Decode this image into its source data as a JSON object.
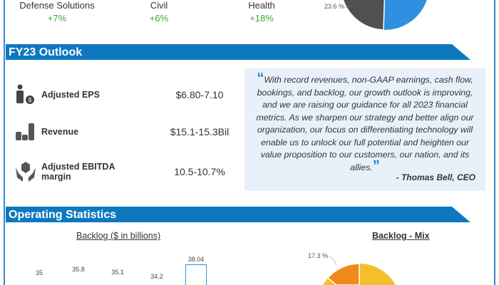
{
  "segments": [
    {
      "name": "Defense Solutions",
      "growth": "+7%"
    },
    {
      "name": "Civil",
      "growth": "+6%"
    },
    {
      "name": "Health",
      "growth": "+18%"
    }
  ],
  "top_pie": {
    "label": "23.6 %",
    "colors": [
      "#505050",
      "#2f8fe0"
    ]
  },
  "outlook": {
    "title": "FY23 Outlook",
    "metrics": [
      {
        "icon": "person-money-icon",
        "label": "Adjusted EPS",
        "value": "$6.80-7.10"
      },
      {
        "icon": "coin-stacks-icon",
        "label": "Revenue",
        "value": "$15.1-15.3Bil"
      },
      {
        "icon": "hands-box-icon",
        "label": "Adjusted EBITDA margin",
        "value": "10.5-10.7%"
      }
    ],
    "quote": "With record revenues, non-GAAP earnings, cash flow, bookings, and backlog, our growth outlook is improving, and we are raising our guidance for all 2023 financial metrics. As we sharpen our strategy and better align our organization, our focus on differentiating technology will enable us to unlock our full potential and heighten our value proposition to our customers, our nation, and its allies.",
    "author": "- Thomas Bell, CEO"
  },
  "operating": {
    "title": "Operating Statistics",
    "backlog_title": "Backlog  ($ in billions)",
    "mix_title": "Backlog - Mix",
    "mix_label": "17.3 %"
  },
  "chart_data": {
    "type": "bar",
    "title": "Backlog ($ in billions)",
    "values": [
      35,
      35.8,
      35.1,
      34.2,
      38.04
    ],
    "labels": [
      "35",
      "35.8",
      "35.1",
      "34.2",
      "38.04"
    ]
  }
}
